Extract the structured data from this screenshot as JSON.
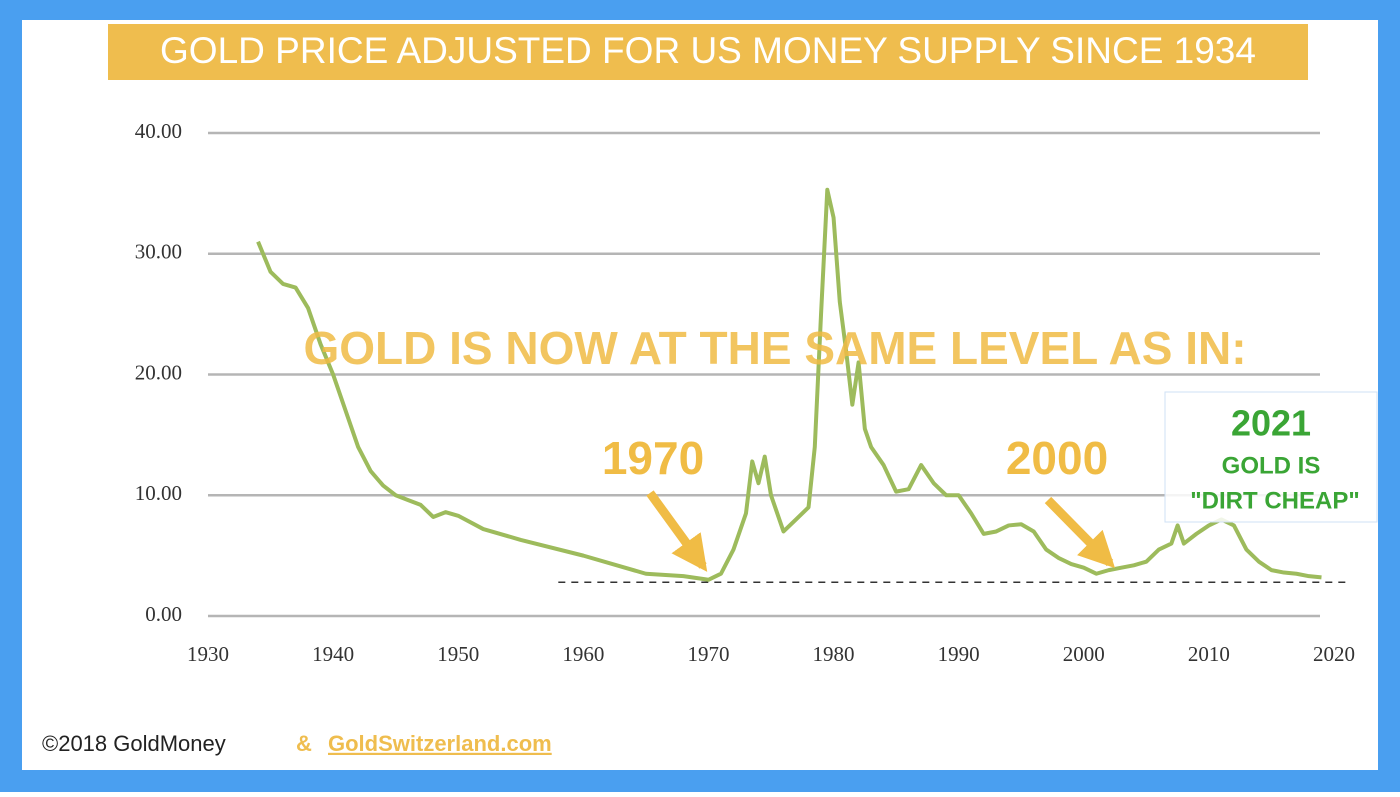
{
  "chart_data": {
    "type": "line",
    "title": "GOLD PRICE ADJUSTED FOR US MONEY SUPPLY SINCE 1934",
    "x": [
      1934,
      1935,
      1936,
      1937,
      1938,
      1939,
      1940,
      1941,
      1942,
      1943,
      1944,
      1945,
      1946,
      1947,
      1948,
      1949,
      1950,
      1952,
      1955,
      1960,
      1965,
      1968,
      1970,
      1971,
      1972,
      1973,
      1973.5,
      1974,
      1974.5,
      1975,
      1976,
      1977,
      1978,
      1978.5,
      1979,
      1979.5,
      1980,
      1980.5,
      1981,
      1981.5,
      1982,
      1982.5,
      1983,
      1984,
      1985,
      1986,
      1987,
      1988,
      1989,
      1990,
      1991,
      1992,
      1993,
      1994,
      1995,
      1996,
      1997,
      1998,
      1999,
      2000,
      2001,
      2002,
      2003,
      2004,
      2005,
      2006,
      2007,
      2007.5,
      2008,
      2009,
      2010,
      2011,
      2012,
      2013,
      2014,
      2015,
      2016,
      2017,
      2018,
      2019
    ],
    "series": [
      {
        "name": "Gold price adjusted for US money supply",
        "color": "#9dbb5c",
        "values": [
          31,
          28.5,
          27.5,
          27.2,
          25.5,
          22.5,
          20,
          17,
          14,
          12,
          10.8,
          10,
          9.6,
          9.2,
          8.2,
          8.6,
          8.3,
          7.2,
          6.3,
          5,
          3.5,
          3.3,
          3.0,
          3.5,
          5.5,
          8.5,
          12.8,
          11,
          13.2,
          10,
          7,
          8,
          9,
          14,
          25,
          35.3,
          33,
          26,
          22,
          17.5,
          21,
          15.5,
          14,
          12.5,
          10.3,
          10.5,
          12.5,
          11,
          10,
          10,
          8.5,
          6.8,
          7,
          7.5,
          7.6,
          7,
          5.5,
          4.8,
          4.3,
          4,
          3.5,
          3.8,
          4,
          4.2,
          4.5,
          5.5,
          6,
          7.5,
          6,
          6.8,
          7.5,
          8,
          7.5,
          5.5,
          4.5,
          3.8,
          3.6,
          3.5,
          3.3,
          3.2
        ]
      }
    ],
    "xlim": [
      1930,
      2020
    ],
    "xticks": [
      1930,
      1940,
      1950,
      1960,
      1970,
      1980,
      1990,
      2000,
      2010,
      2020
    ],
    "ylim": [
      0,
      40
    ],
    "yticks": [
      {
        "value": 0,
        "label": "0.00"
      },
      {
        "value": 10,
        "label": "10.00"
      },
      {
        "value": 20,
        "label": "20.00"
      },
      {
        "value": 30,
        "label": "30.00"
      },
      {
        "value": 40,
        "label": "40.00"
      }
    ],
    "grid": true,
    "reference_line": {
      "value": 2.8,
      "x": [
        1958,
        2021
      ]
    },
    "annotations": [
      "GOLD IS NOW AT THE SAME LEVEL AS IN:",
      "1970",
      "2000",
      "2021",
      "GOLD IS",
      "\"DIRT CHEAP\""
    ]
  },
  "footer": {
    "copyright": "©2018 GoldMoney",
    "separator": "&",
    "link": "GoldSwitzerland.com"
  }
}
